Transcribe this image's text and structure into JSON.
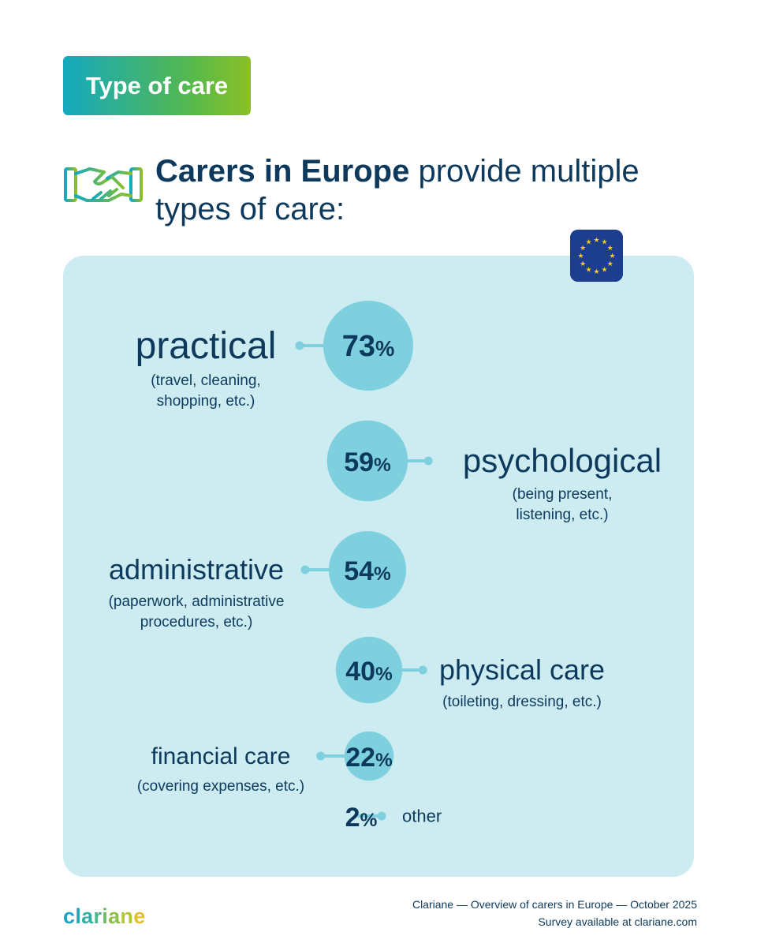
{
  "badge": {
    "label": "Type of care"
  },
  "headline": {
    "bold": "Carers in Europe",
    "rest": " provide multiple types of care:"
  },
  "colors": {
    "navy": "#0d3a5c",
    "bubble": "#7fd0df",
    "panel": "#cdecf2",
    "gradient_start": "#14a9bf",
    "gradient_end": "#8cc026",
    "eu_blue": "#1d3e8e",
    "eu_star": "#f5d000"
  },
  "icons": {
    "handshake": "handshake-icon",
    "flag": "eu-flag-icon"
  },
  "chart_data": {
    "type": "bubble",
    "unit": "%",
    "categories": [
      {
        "label": "practical",
        "detail": [
          "(travel, cleaning,",
          "shopping, etc.)"
        ],
        "value": 73,
        "side": "left"
      },
      {
        "label": "psychological",
        "detail": [
          "(being present,",
          "listening, etc.)"
        ],
        "value": 59,
        "side": "right"
      },
      {
        "label": "administrative",
        "detail": [
          "(paperwork, administrative",
          "procedures, etc.)"
        ],
        "value": 54,
        "side": "left"
      },
      {
        "label": "physical care",
        "detail": [
          "(toileting, dressing, etc.)"
        ],
        "value": 40,
        "side": "right"
      },
      {
        "label": "financial care",
        "detail": [
          "(covering expenses, etc.)"
        ],
        "value": 22,
        "side": "left"
      },
      {
        "label": "other",
        "detail": [],
        "value": 2,
        "side": "right"
      }
    ]
  },
  "footer": {
    "logo_letters": [
      "c",
      "l",
      "a",
      "r",
      "i",
      "a",
      "n",
      "e"
    ],
    "source": "Clariane — Overview of carers in Europe — October 2025",
    "survey": "Survey available at clariane.com"
  }
}
